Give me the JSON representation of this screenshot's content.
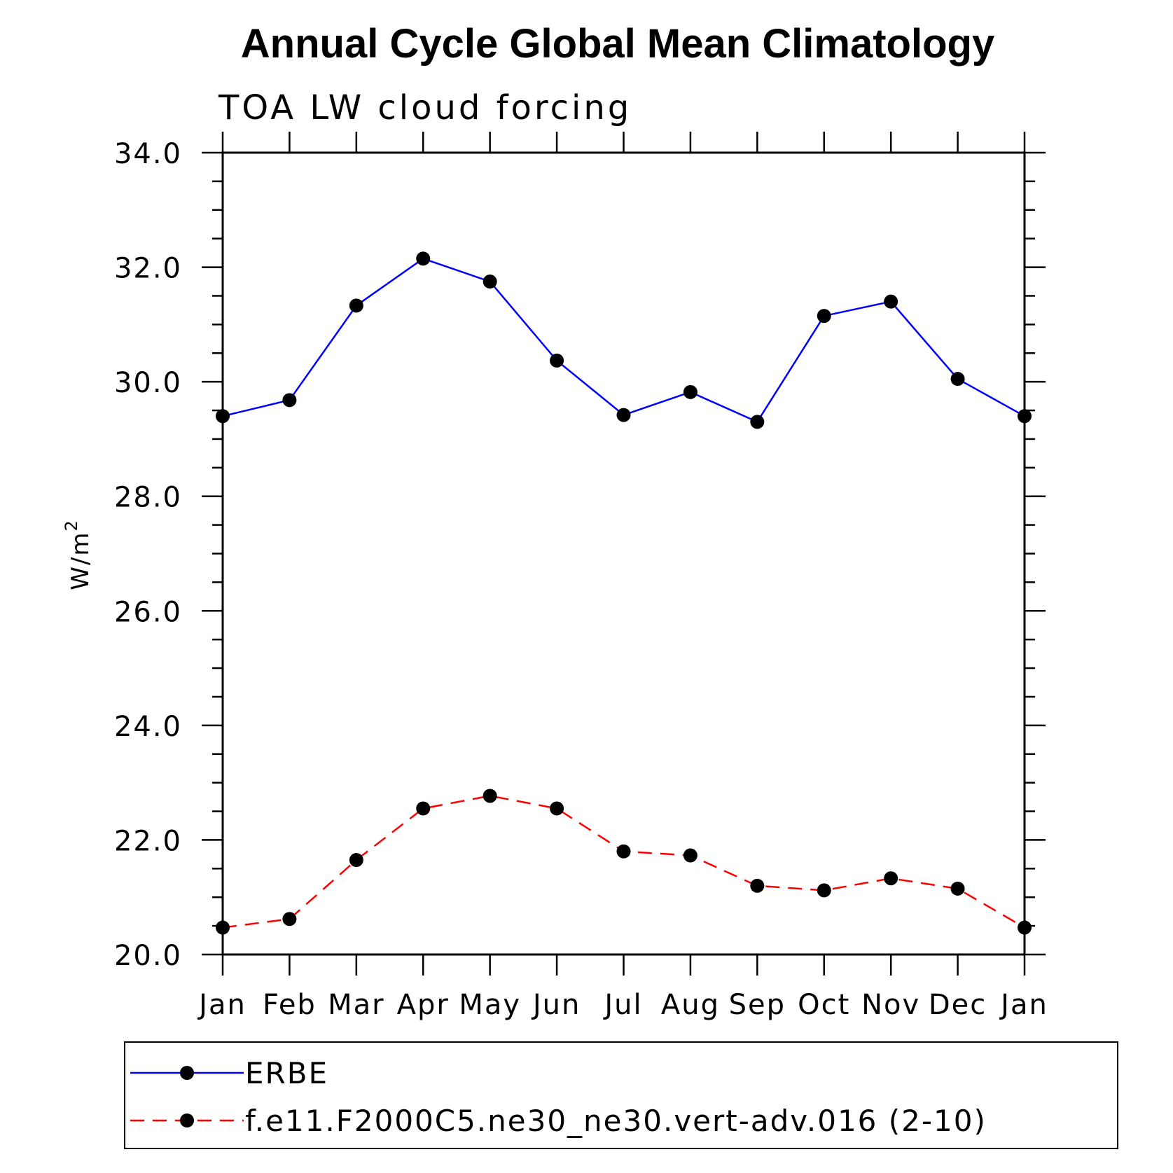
{
  "chart_data": {
    "type": "line",
    "title": "Annual Cycle Global Mean Climatology",
    "subtitle": "TOA LW cloud forcing",
    "ylabel": "W/m",
    "ylabel_superscript": "2",
    "categories": [
      "Jan",
      "Feb",
      "Mar",
      "Apr",
      "May",
      "Jun",
      "Jul",
      "Aug",
      "Sep",
      "Oct",
      "Nov",
      "Dec",
      "Jan"
    ],
    "ylim": [
      20.0,
      34.0
    ],
    "yticks": [
      "20.0",
      "22.0",
      "24.0",
      "26.0",
      "28.0",
      "30.0",
      "32.0",
      "34.0"
    ],
    "grid": false,
    "legend_position": "bottom",
    "series": [
      {
        "name": "ERBE",
        "color": "#0000ff",
        "dash": "solid",
        "values": [
          29.4,
          29.68,
          31.33,
          32.15,
          31.75,
          30.37,
          29.42,
          29.82,
          29.3,
          31.15,
          31.4,
          30.05,
          29.4
        ]
      },
      {
        "name": "f.e11.F2000C5.ne30_ne30.vert-adv.016 (2-10)",
        "color": "#ff0000",
        "dash": "dashed",
        "values": [
          20.47,
          20.62,
          21.65,
          22.55,
          22.77,
          22.55,
          21.8,
          21.73,
          21.2,
          21.12,
          21.33,
          21.15,
          20.47
        ]
      }
    ]
  }
}
